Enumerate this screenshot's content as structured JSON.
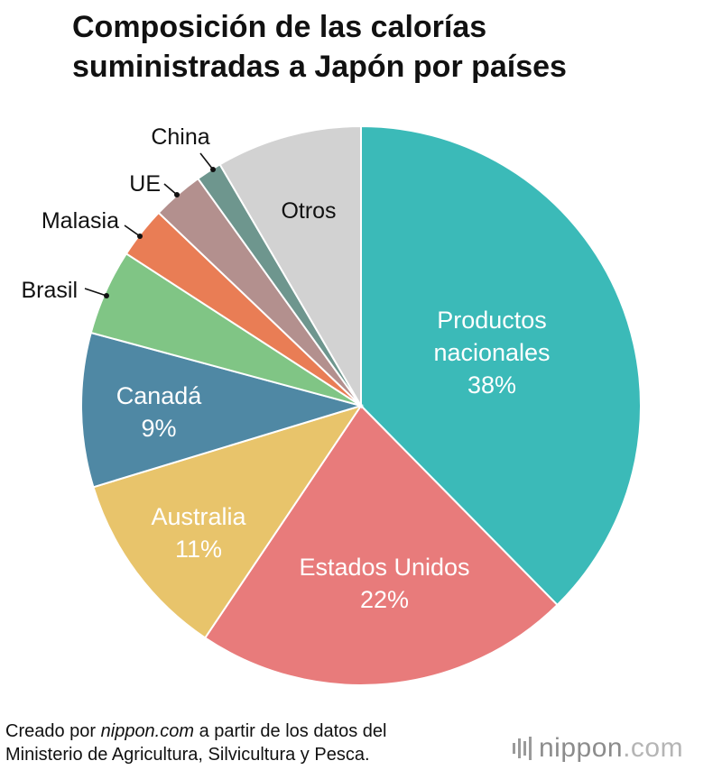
{
  "title": {
    "line1": "Composición de las calorías",
    "line2": "suministradas a Japón por países"
  },
  "chart_data": {
    "type": "pie",
    "title": "Composición de las calorías suministradas a Japón por países",
    "slices": [
      {
        "label_lines": [
          "Productos",
          "nacionales"
        ],
        "value": 38,
        "value_label": "38%",
        "color": "#3bbab8",
        "label_inside": true
      },
      {
        "label_lines": [
          "Estados Unidos"
        ],
        "value": 22,
        "value_label": "22%",
        "color": "#e87b7b",
        "label_inside": true
      },
      {
        "label_lines": [
          "Australia"
        ],
        "value": 11,
        "value_label": "11%",
        "color": "#e8c46b",
        "label_inside": true
      },
      {
        "label_lines": [
          "Canadá"
        ],
        "value": 9,
        "value_label": "9%",
        "color": "#4f88a4",
        "label_inside": true
      },
      {
        "label_lines": [
          "Brasil"
        ],
        "value": 5,
        "value_label": "",
        "color": "#80c585",
        "label_inside": false
      },
      {
        "label_lines": [
          "Malasia"
        ],
        "value": 3,
        "value_label": "",
        "color": "#e97d55",
        "label_inside": false
      },
      {
        "label_lines": [
          "UE"
        ],
        "value": 3,
        "value_label": "",
        "color": "#b3908e",
        "label_inside": false
      },
      {
        "label_lines": [
          "China"
        ],
        "value": 1.5,
        "value_label": "",
        "color": "#6e968e",
        "label_inside": false
      },
      {
        "label_lines": [
          "Otros"
        ],
        "value": 8.5,
        "value_label": "",
        "color": "#d2d2d2",
        "label_inside": true
      }
    ],
    "start_angle": "12 o'clock",
    "direction": "clockwise",
    "legend": "none"
  },
  "footer": {
    "prefix": "Creado por ",
    "site": "nippon.com",
    "suffix": " a partir de los datos del",
    "line2": "Ministerio de Agricultura, Silvicultura y Pesca."
  },
  "brand": {
    "name": "nippon",
    "domain": ".com"
  }
}
